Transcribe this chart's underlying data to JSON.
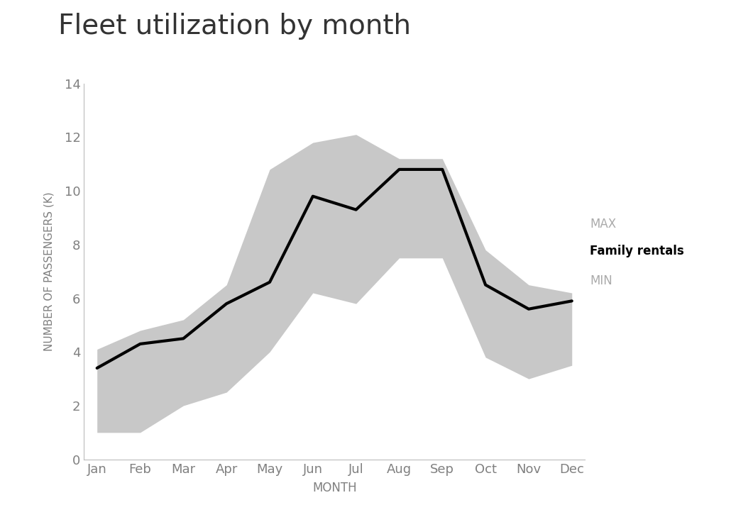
{
  "title": "Fleet utilization by month",
  "title_color": "#333333",
  "title_fontsize": 28,
  "xlabel": "MONTH",
  "ylabel": "NUMBER OF PASSENGERS (K)",
  "months": [
    "Jan",
    "Feb",
    "Mar",
    "Apr",
    "May",
    "Jun",
    "Jul",
    "Aug",
    "Sep",
    "Oct",
    "Nov",
    "Dec"
  ],
  "family_rentals": [
    3.4,
    4.3,
    4.5,
    5.8,
    6.6,
    9.8,
    9.3,
    10.8,
    10.8,
    6.5,
    5.6,
    5.9
  ],
  "max_vals": [
    4.1,
    4.8,
    5.2,
    6.5,
    10.8,
    11.8,
    12.1,
    11.2,
    11.2,
    7.8,
    6.5,
    6.2
  ],
  "min_vals": [
    1.0,
    1.0,
    2.0,
    2.5,
    4.0,
    6.2,
    5.8,
    7.5,
    7.5,
    3.8,
    3.0,
    3.5
  ],
  "line_color": "#000000",
  "line_width": 3.0,
  "shade_color": "#c8c8c8",
  "shade_alpha": 1.0,
  "ylim": [
    0,
    14
  ],
  "yticks": [
    0,
    2,
    4,
    6,
    8,
    10,
    12,
    14
  ],
  "axis_color": "#bbbbbb",
  "tick_label_color": "#808080",
  "tick_fontsize": 13,
  "label_fontsize": 11,
  "legend_max_label": "MAX",
  "legend_line_label": "Family rentals",
  "legend_min_label": "MIN",
  "bg_color": "#ffffff"
}
